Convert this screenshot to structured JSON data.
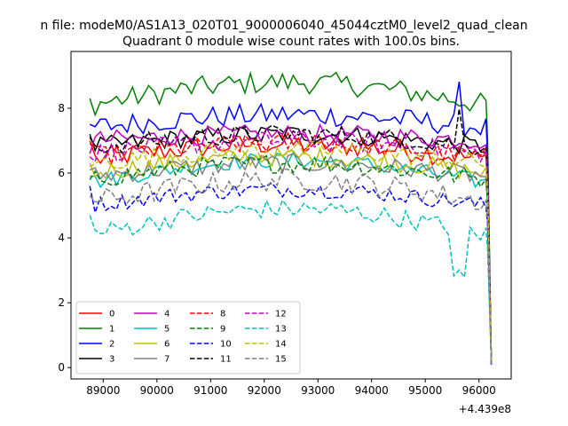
{
  "chart_data": {
    "type": "line",
    "suptitle": "n file: modeM0/AS1A13_020T01_9000006040_45044cztM0_level2_quad_clean",
    "title": "Quadrant 0 module wise count rates with 100.0s bins.",
    "xlabel": "",
    "ylabel": "",
    "x_offset_label": "+4.439e8",
    "x_range": [
      88750,
      96230
    ],
    "xlim": [
      88400,
      96600
    ],
    "ylim": [
      -0.35,
      9.75
    ],
    "x_ticks": [
      89000,
      90000,
      91000,
      92000,
      93000,
      94000,
      95000,
      96000
    ],
    "x_tick_labels": [
      "89000",
      "90000",
      "91000",
      "92000",
      "93000",
      "94000",
      "95000",
      "96000"
    ],
    "y_ticks": [
      0,
      2,
      4,
      6,
      8
    ],
    "y_tick_labels": [
      "0",
      "2",
      "4",
      "6",
      "8"
    ],
    "grid": false,
    "legend_position": "lower-left",
    "series": [
      {
        "name": "0",
        "color": "#ff0000",
        "style": "solid",
        "base": 6.6,
        "rise": 0.5,
        "amp": 0.35,
        "start": 7.0
      },
      {
        "name": "1",
        "color": "#008000",
        "style": "solid",
        "base": 8.3,
        "rise": 0.7,
        "amp": 0.35,
        "start": 8.3
      },
      {
        "name": "2",
        "color": "#0000ff",
        "style": "solid",
        "base": 7.6,
        "rise": 0.4,
        "amp": 0.35,
        "start": 7.5
      },
      {
        "name": "3",
        "color": "#000000",
        "style": "solid",
        "base": 7.0,
        "rise": 0.4,
        "amp": 0.3,
        "start": 7.2
      },
      {
        "name": "4",
        "color": "#bf00bf",
        "style": "solid",
        "base": 7.2,
        "rise": 0.2,
        "amp": 0.3,
        "start": 6.6
      },
      {
        "name": "5",
        "color": "#00bfbf",
        "style": "solid",
        "base": 5.9,
        "rise": 0.7,
        "amp": 0.25,
        "start": 5.9
      },
      {
        "name": "6",
        "color": "#bfbf00",
        "style": "solid",
        "base": 6.2,
        "rise": 0.5,
        "amp": 0.3,
        "start": 6.3
      },
      {
        "name": "7",
        "color": "#808080",
        "style": "solid",
        "base": 6.1,
        "rise": 0.4,
        "amp": 0.3,
        "start": 6.1
      },
      {
        "name": "8",
        "color": "#ff0000",
        "style": "dashed",
        "base": 6.7,
        "rise": 0.4,
        "amp": 0.3,
        "start": 6.9
      },
      {
        "name": "9",
        "color": "#008000",
        "style": "dashed",
        "base": 6.0,
        "rise": 0.5,
        "amp": 0.3,
        "start": 5.8
      },
      {
        "name": "10",
        "color": "#0000ff",
        "style": "dashed",
        "base": 5.2,
        "rise": 0.5,
        "amp": 0.25,
        "start": 5.6
      },
      {
        "name": "11",
        "color": "#000000",
        "style": "dashed",
        "base": 7.0,
        "rise": 0.4,
        "amp": 0.3,
        "start": 7.1
      },
      {
        "name": "12",
        "color": "#bf00bf",
        "style": "dashed",
        "base": 6.8,
        "rise": 0.4,
        "amp": 0.3,
        "start": 6.5
      },
      {
        "name": "13",
        "color": "#00bfbf",
        "style": "dashed",
        "base": 4.3,
        "rise": 0.8,
        "amp": 0.3,
        "start": 4.7
      },
      {
        "name": "14",
        "color": "#bfbf00",
        "style": "dashed",
        "base": 6.5,
        "rise": 0.4,
        "amp": 0.3,
        "start": 6.2
      },
      {
        "name": "15",
        "color": "#808080",
        "style": "dashed",
        "base": 5.3,
        "rise": 0.7,
        "amp": 0.35,
        "start": 5.3
      }
    ]
  }
}
